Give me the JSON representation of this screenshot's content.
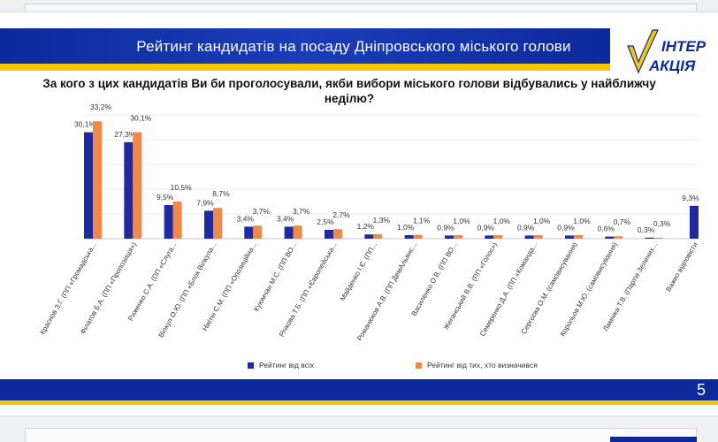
{
  "header": {
    "title": "Рейтинг кандидатів на посаду Дніпровського міського голови",
    "logo_text_top": "ІНТЕР",
    "logo_text_bottom": "АКЦІЯ"
  },
  "colors": {
    "series_all": "#1f2a9c",
    "series_decided": "#f08a4b",
    "header_blue": "#0d2a9b",
    "accent_yellow": "#f7c600"
  },
  "page_number": "5",
  "chart_data": {
    "type": "bar",
    "title": "За кого з цих кандидатів Ви би проголосували, якби вибори міського голови відбувались у найближчу неділю?",
    "categories": [
      "Краснов З.Г. (ПП «Громадська...",
      "Філатов Б.А. (ПП «Пропозиція»)",
      "Риженко С.А. (ПП «Слуга...",
      "Вілкул О.Ю. (ПП «Блок Вілкула...",
      "Нікітін С.М. (ПП «Опозиційна...",
      "Куюмчан М.С. (ПП ВО...",
      "Річкова Т.Б. (ПП «Європейська...",
      "Майденко І.Є. (ПП...",
      "Романюков А.В. (ПП ДемАльянс...",
      "Василенко О.В. (ПП ВО...",
      "Жеганський В.В. (ПП «Голос»)",
      "Семеренко Д.А. (ПП «Команда...",
      "Сергєєва О.М. (самовисування)",
      "Корольов М.Ю. (самовисування)",
      "Ламніка Т.В. (Партія Зелених...",
      "Важко відповісти"
    ],
    "series": [
      {
        "name": "Рейтинг від всіх",
        "values": [
          30.1,
          27.3,
          9.5,
          7.9,
          3.4,
          3.4,
          2.5,
          1.2,
          1.0,
          0.9,
          0.9,
          0.9,
          0.9,
          0.6,
          0.3,
          9.3
        ],
        "labels": [
          "30,1%",
          "27,3%",
          "9,5%",
          "7,9%",
          "3,4%",
          "3,4%",
          "2,5%",
          "1,2%",
          "1,0%",
          "0,9%",
          "0,9%",
          "0,9%",
          "0,9%",
          "0,6%",
          "0,3%",
          "9,3%"
        ]
      },
      {
        "name": "Рейтинг від тих, хто визначився",
        "values": [
          33.2,
          30.1,
          10.5,
          8.7,
          3.7,
          3.7,
          2.7,
          1.3,
          1.1,
          1.0,
          1.0,
          1.0,
          1.0,
          0.7,
          0.3,
          null
        ],
        "labels": [
          "33,2%",
          "30,1%",
          "10,5%",
          "8,7%",
          "3,7%",
          "3,7%",
          "2,7%",
          "1,3%",
          "1,1%",
          "1,0%",
          "1,0%",
          "1,0%",
          "1,0%",
          "0,7%",
          "0,3%",
          ""
        ]
      }
    ],
    "ylim": [
      0,
      35
    ],
    "grid": true,
    "legend_position": "bottom"
  }
}
